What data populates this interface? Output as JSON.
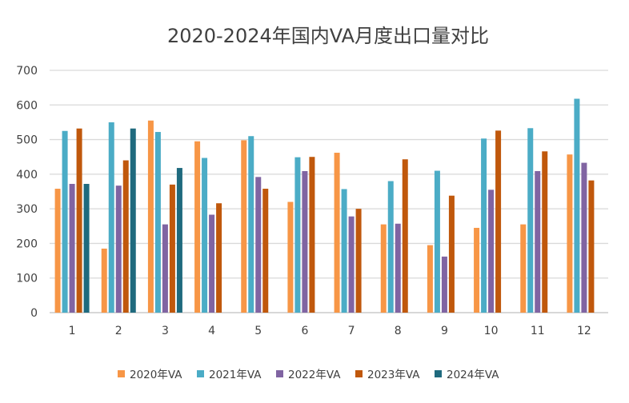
{
  "chart_data": {
    "type": "bar",
    "title": "2020-2024年国内VA月度出口量对比",
    "xlabel": "",
    "ylabel": "",
    "ylim": [
      0,
      700
    ],
    "yticks": [
      0,
      100,
      200,
      300,
      400,
      500,
      600,
      700
    ],
    "grid": true,
    "legend_position": "bottom",
    "categories": [
      "1",
      "2",
      "3",
      "4",
      "5",
      "6",
      "7",
      "8",
      "9",
      "10",
      "11",
      "12"
    ],
    "series": [
      {
        "name": "2020年VA",
        "color": "#F79646",
        "values": [
          358,
          185,
          555,
          495,
          498,
          320,
          462,
          255,
          195,
          245,
          255,
          457
        ]
      },
      {
        "name": "2021年VA",
        "color": "#4BACC6",
        "values": [
          525,
          550,
          522,
          447,
          510,
          449,
          357,
          380,
          410,
          503,
          533,
          618
        ]
      },
      {
        "name": "2022年VA",
        "color": "#8064A2",
        "values": [
          372,
          367,
          255,
          283,
          392,
          409,
          278,
          257,
          162,
          355,
          409,
          433
        ]
      },
      {
        "name": "2023年VA",
        "color": "#C0580C",
        "values": [
          532,
          440,
          370,
          316,
          358,
          450,
          300,
          443,
          338,
          526,
          466,
          382
        ]
      },
      {
        "name": "2024年VA",
        "color": "#1F6A7E",
        "values": [
          372,
          532,
          418,
          null,
          null,
          null,
          null,
          null,
          null,
          null,
          null,
          null
        ]
      }
    ]
  }
}
